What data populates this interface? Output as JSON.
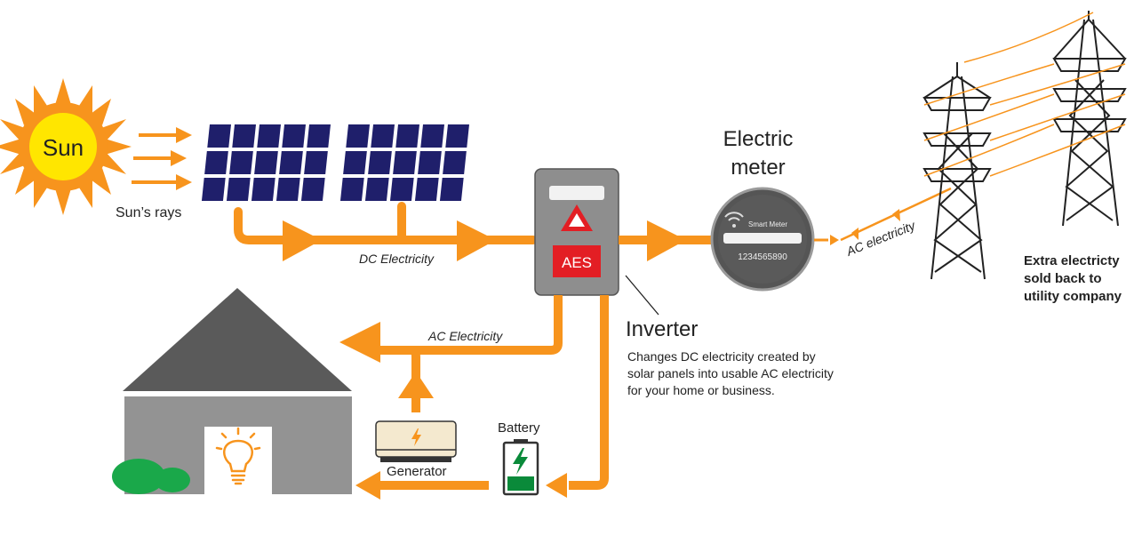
{
  "sun": {
    "label": "Sun",
    "rays_label": "Sun’s rays"
  },
  "flows": {
    "dc_label": "DC Electricity",
    "ac_home_label": "AC Electricity",
    "ac_grid_label": "AC electricity"
  },
  "inverter": {
    "brand": "AES",
    "title": "Inverter",
    "description": [
      "Changes DC electricity created by",
      "solar panels into usable AC electricity",
      "for your home or business."
    ]
  },
  "meter": {
    "title_lines": [
      "Electric",
      "meter"
    ],
    "brand": "Smart Meter",
    "serial": "1234565890"
  },
  "grid": {
    "caption_lines": [
      "Extra electricty",
      "sold back to",
      "utility company"
    ]
  },
  "generator": {
    "label": "Generator"
  },
  "battery": {
    "label": "Battery"
  },
  "colors": {
    "flow": "#f7941d",
    "panel": "#1f1f6b",
    "sun": "#ffe600",
    "house_roof": "#5a5a5a",
    "house_wall": "#939393",
    "battery_green": "#0a8a3a",
    "alert_red": "#e31e24"
  }
}
